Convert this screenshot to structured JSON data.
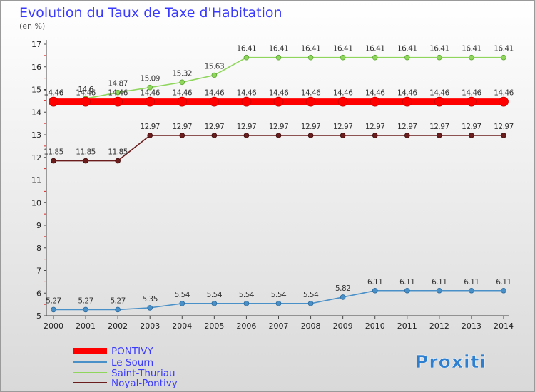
{
  "header": {
    "title": "Evolution du Taux de Taxe d'Habitation",
    "subtitle": "(en %)"
  },
  "logo": {
    "text": "Proxiti"
  },
  "chart_data": {
    "type": "line",
    "title": "Evolution du Taux de Taxe d'Habitation",
    "ylabel": "(en %)",
    "xlabel": "",
    "categories": [
      "2000",
      "2001",
      "2002",
      "2003",
      "2004",
      "2005",
      "2006",
      "2007",
      "2008",
      "2009",
      "2010",
      "2011",
      "2012",
      "2013",
      "2014"
    ],
    "ylim": [
      5,
      17
    ],
    "yticks": [
      5,
      6,
      7,
      8,
      9,
      10,
      11,
      12,
      13,
      14,
      15,
      16,
      17
    ],
    "grid": false,
    "legend_position": "bottom-left",
    "series": [
      {
        "name": "PONTIVY",
        "color": "#ff0000",
        "values": [
          14.46,
          14.46,
          14.46,
          14.46,
          14.46,
          14.46,
          14.46,
          14.46,
          14.46,
          14.46,
          14.46,
          14.46,
          14.46,
          14.46,
          14.46
        ]
      },
      {
        "name": "Le Sourn",
        "color": "#4a90c8",
        "values": [
          5.27,
          5.27,
          5.27,
          5.35,
          5.54,
          5.54,
          5.54,
          5.54,
          5.54,
          5.82,
          6.11,
          6.11,
          6.11,
          6.11,
          6.11
        ]
      },
      {
        "name": "Saint-Thuriau",
        "color": "#8fd65c",
        "values": [
          14.46,
          14.6,
          14.87,
          15.09,
          15.32,
          15.63,
          16.41,
          16.41,
          16.41,
          16.41,
          16.41,
          16.41,
          16.41,
          16.41,
          16.41
        ],
        "labels": [
          "14.46",
          "14.6",
          "14.87",
          "15.09",
          "15.32",
          "15.63",
          "16.41",
          "16.41",
          "16.41",
          "16.41",
          "16.41",
          "16.41",
          "16.41",
          "16.41",
          "16.41"
        ]
      },
      {
        "name": "Noyal-Pontivy",
        "color": "#6b1c1c",
        "values": [
          11.85,
          11.85,
          11.85,
          12.97,
          12.97,
          12.97,
          12.97,
          12.97,
          12.97,
          12.97,
          12.97,
          12.97,
          12.97,
          12.97,
          12.97
        ]
      }
    ]
  }
}
